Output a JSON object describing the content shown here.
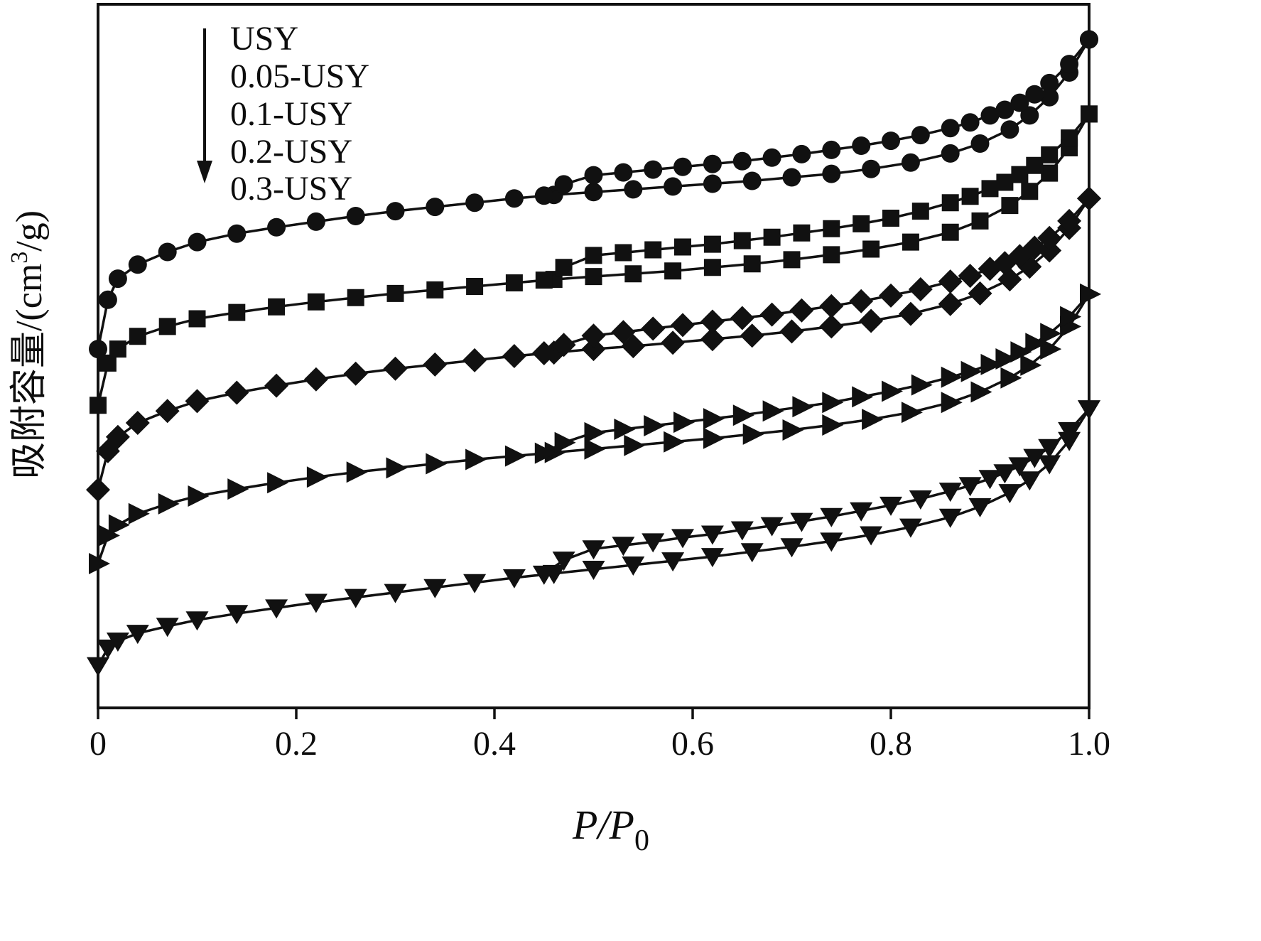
{
  "figure": {
    "background": "#ffffff",
    "ink_color": "#111111"
  },
  "chart_data": {
    "type": "line",
    "subtype": "adsorption-desorption-isotherms",
    "title": "",
    "xlabel": {
      "text": "P/P0",
      "main": "P/P",
      "sub": "0"
    },
    "ylabel": {
      "text": "吸附容量/(cm3/g)",
      "prefix": "吸附容量/(cm",
      "sup": "3",
      "suffix": "/g)"
    },
    "xlim": [
      0,
      1.0
    ],
    "ylim": [
      0,
      100
    ],
    "y_value_note": "y axis has no numeric tick labels in the figure; values are normalized relative units estimated from pixel positions",
    "x_ticks": [
      0,
      0.2,
      0.4,
      0.6,
      0.8,
      1.0
    ],
    "x_tick_labels": [
      "0",
      "0.2",
      "0.4",
      "0.6",
      "0.8",
      "1.0"
    ],
    "grid": false,
    "color": "#111111",
    "legend": {
      "position": "top-left-inside",
      "order_arrow": "down",
      "entries": [
        "USY",
        "0.05-USY",
        "0.1-USY",
        "0.2-USY",
        "0.3-USY"
      ]
    },
    "series": [
      {
        "id": "usy",
        "name": "USY",
        "marker": "circle",
        "branches": [
          {
            "name": "adsorption",
            "x": [
              0,
              0.01,
              0.02,
              0.04,
              0.07,
              0.1,
              0.14,
              0.18,
              0.22,
              0.26,
              0.3,
              0.34,
              0.38,
              0.42,
              0.46,
              0.5,
              0.54,
              0.58,
              0.62,
              0.66,
              0.7,
              0.74,
              0.78,
              0.82,
              0.86,
              0.89,
              0.92,
              0.94,
              0.96,
              0.98,
              1.0
            ],
            "y": [
              51,
              58,
              61,
              63,
              64.8,
              66.2,
              67.4,
              68.3,
              69.1,
              69.9,
              70.6,
              71.2,
              71.8,
              72.4,
              72.9,
              73.3,
              73.7,
              74.1,
              74.5,
              74.9,
              75.4,
              75.9,
              76.6,
              77.5,
              78.8,
              80.2,
              82.2,
              84.2,
              86.8,
              90.3,
              95
            ]
          },
          {
            "name": "desorption",
            "x": [
              1.0,
              0.98,
              0.96,
              0.945,
              0.93,
              0.915,
              0.9,
              0.88,
              0.86,
              0.83,
              0.8,
              0.77,
              0.74,
              0.71,
              0.68,
              0.65,
              0.62,
              0.59,
              0.56,
              0.53,
              0.5,
              0.47,
              0.45
            ],
            "y": [
              95,
              91.5,
              88.8,
              87.2,
              86,
              85,
              84.2,
              83.2,
              82.4,
              81.4,
              80.6,
              79.9,
              79.3,
              78.7,
              78.2,
              77.7,
              77.3,
              76.9,
              76.5,
              76.1,
              75.7,
              74.4,
              72.8
            ]
          }
        ]
      },
      {
        "id": "usy-005",
        "name": "0.05-USY",
        "marker": "square",
        "branches": [
          {
            "name": "adsorption",
            "x": [
              0,
              0.01,
              0.02,
              0.04,
              0.07,
              0.1,
              0.14,
              0.18,
              0.22,
              0.26,
              0.3,
              0.34,
              0.38,
              0.42,
              0.46,
              0.5,
              0.54,
              0.58,
              0.62,
              0.66,
              0.7,
              0.74,
              0.78,
              0.82,
              0.86,
              0.89,
              0.92,
              0.94,
              0.96,
              0.98,
              1.0
            ],
            "y": [
              43,
              49,
              51,
              52.8,
              54.2,
              55.3,
              56.2,
              57,
              57.7,
              58.3,
              58.9,
              59.4,
              59.9,
              60.4,
              60.9,
              61.3,
              61.7,
              62.1,
              62.6,
              63.1,
              63.7,
              64.4,
              65.2,
              66.2,
              67.6,
              69.2,
              71.4,
              73.4,
              76,
              79.6,
              84.4
            ]
          },
          {
            "name": "desorption",
            "x": [
              1.0,
              0.98,
              0.96,
              0.945,
              0.93,
              0.915,
              0.9,
              0.88,
              0.86,
              0.83,
              0.8,
              0.77,
              0.74,
              0.71,
              0.68,
              0.65,
              0.62,
              0.59,
              0.56,
              0.53,
              0.5,
              0.47,
              0.45
            ],
            "y": [
              84.4,
              81,
              78.6,
              77.1,
              75.8,
              74.7,
              73.8,
              72.7,
              71.8,
              70.6,
              69.6,
              68.8,
              68.1,
              67.5,
              66.9,
              66.4,
              65.9,
              65.5,
              65.1,
              64.7,
              64.3,
              62.6,
              60.8
            ]
          }
        ]
      },
      {
        "id": "usy-01",
        "name": "0.1-USY",
        "marker": "diamond",
        "branches": [
          {
            "name": "adsorption",
            "x": [
              0,
              0.01,
              0.02,
              0.04,
              0.07,
              0.1,
              0.14,
              0.18,
              0.22,
              0.26,
              0.3,
              0.34,
              0.38,
              0.42,
              0.46,
              0.5,
              0.54,
              0.58,
              0.62,
              0.66,
              0.7,
              0.74,
              0.78,
              0.82,
              0.86,
              0.89,
              0.92,
              0.94,
              0.96,
              0.98,
              1.0
            ],
            "y": [
              31,
              36.5,
              38.5,
              40.5,
              42.2,
              43.6,
              44.8,
              45.8,
              46.7,
              47.5,
              48.2,
              48.8,
              49.4,
              50,
              50.5,
              51,
              51.4,
              51.9,
              52.4,
              52.9,
              53.5,
              54.2,
              55,
              56,
              57.4,
              58.9,
              60.9,
              62.7,
              65,
              68.2,
              72.4
            ]
          },
          {
            "name": "desorption",
            "x": [
              1.0,
              0.98,
              0.96,
              0.945,
              0.93,
              0.915,
              0.9,
              0.88,
              0.86,
              0.83,
              0.8,
              0.77,
              0.74,
              0.71,
              0.68,
              0.65,
              0.62,
              0.59,
              0.56,
              0.53,
              0.5,
              0.47,
              0.45
            ],
            "y": [
              72.4,
              69.2,
              66.8,
              65.4,
              64.2,
              63.2,
              62.4,
              61.4,
              60.6,
              59.5,
              58.6,
              57.8,
              57.1,
              56.5,
              55.9,
              55.4,
              54.9,
              54.4,
              53.9,
              53.4,
              52.9,
              51.6,
              50.4
            ]
          }
        ]
      },
      {
        "id": "usy-02",
        "name": "0.2-USY",
        "marker": "triangle-right",
        "branches": [
          {
            "name": "adsorption",
            "x": [
              0,
              0.01,
              0.02,
              0.04,
              0.07,
              0.1,
              0.14,
              0.18,
              0.22,
              0.26,
              0.3,
              0.34,
              0.38,
              0.42,
              0.46,
              0.5,
              0.54,
              0.58,
              0.62,
              0.66,
              0.7,
              0.74,
              0.78,
              0.82,
              0.86,
              0.89,
              0.92,
              0.94,
              0.96,
              0.98,
              1.0
            ],
            "y": [
              20.5,
              24.5,
              26,
              27.6,
              29,
              30.1,
              31.1,
              32,
              32.8,
              33.5,
              34.1,
              34.7,
              35.3,
              35.8,
              36.3,
              36.8,
              37.3,
              37.8,
              38.3,
              38.9,
              39.5,
              40.2,
              41,
              42,
              43.4,
              44.9,
              46.9,
              48.7,
              51,
              54.2,
              58.8
            ]
          },
          {
            "name": "desorption",
            "x": [
              1.0,
              0.98,
              0.96,
              0.945,
              0.93,
              0.915,
              0.9,
              0.88,
              0.86,
              0.83,
              0.8,
              0.77,
              0.74,
              0.71,
              0.68,
              0.65,
              0.62,
              0.59,
              0.56,
              0.53,
              0.5,
              0.47,
              0.45
            ],
            "y": [
              58.8,
              55.6,
              53.2,
              51.8,
              50.6,
              49.6,
              48.8,
              47.8,
              47,
              45.9,
              45,
              44.2,
              43.4,
              42.8,
              42.2,
              41.6,
              41.1,
              40.6,
              40.1,
              39.6,
              39.1,
              37.7,
              36.2
            ]
          }
        ]
      },
      {
        "id": "usy-03",
        "name": "0.3-USY",
        "marker": "triangle-down",
        "branches": [
          {
            "name": "adsorption",
            "x": [
              0,
              0.01,
              0.02,
              0.04,
              0.07,
              0.1,
              0.14,
              0.18,
              0.22,
              0.26,
              0.3,
              0.34,
              0.38,
              0.42,
              0.46,
              0.5,
              0.54,
              0.58,
              0.62,
              0.66,
              0.7,
              0.74,
              0.78,
              0.82,
              0.86,
              0.89,
              0.92,
              0.94,
              0.96,
              0.98,
              1.0
            ],
            "y": [
              6,
              8.5,
              9.5,
              10.6,
              11.6,
              12.5,
              13.4,
              14.2,
              15,
              15.7,
              16.4,
              17.1,
              17.8,
              18.5,
              19.1,
              19.7,
              20.3,
              20.9,
              21.5,
              22.2,
              22.9,
              23.7,
              24.6,
              25.7,
              27.1,
              28.6,
              30.6,
              32.4,
              34.7,
              38,
              42.5
            ]
          },
          {
            "name": "desorption",
            "x": [
              1.0,
              0.98,
              0.96,
              0.945,
              0.93,
              0.915,
              0.9,
              0.88,
              0.86,
              0.83,
              0.8,
              0.77,
              0.74,
              0.71,
              0.68,
              0.65,
              0.62,
              0.59,
              0.56,
              0.53,
              0.5,
              0.47,
              0.45
            ],
            "y": [
              42.5,
              39.4,
              37,
              35.6,
              34.4,
              33.4,
              32.6,
              31.6,
              30.8,
              29.7,
              28.8,
              28,
              27.2,
              26.5,
              25.9,
              25.3,
              24.7,
              24.2,
              23.6,
              23.1,
              22.6,
              21,
              19
            ]
          }
        ]
      }
    ]
  }
}
